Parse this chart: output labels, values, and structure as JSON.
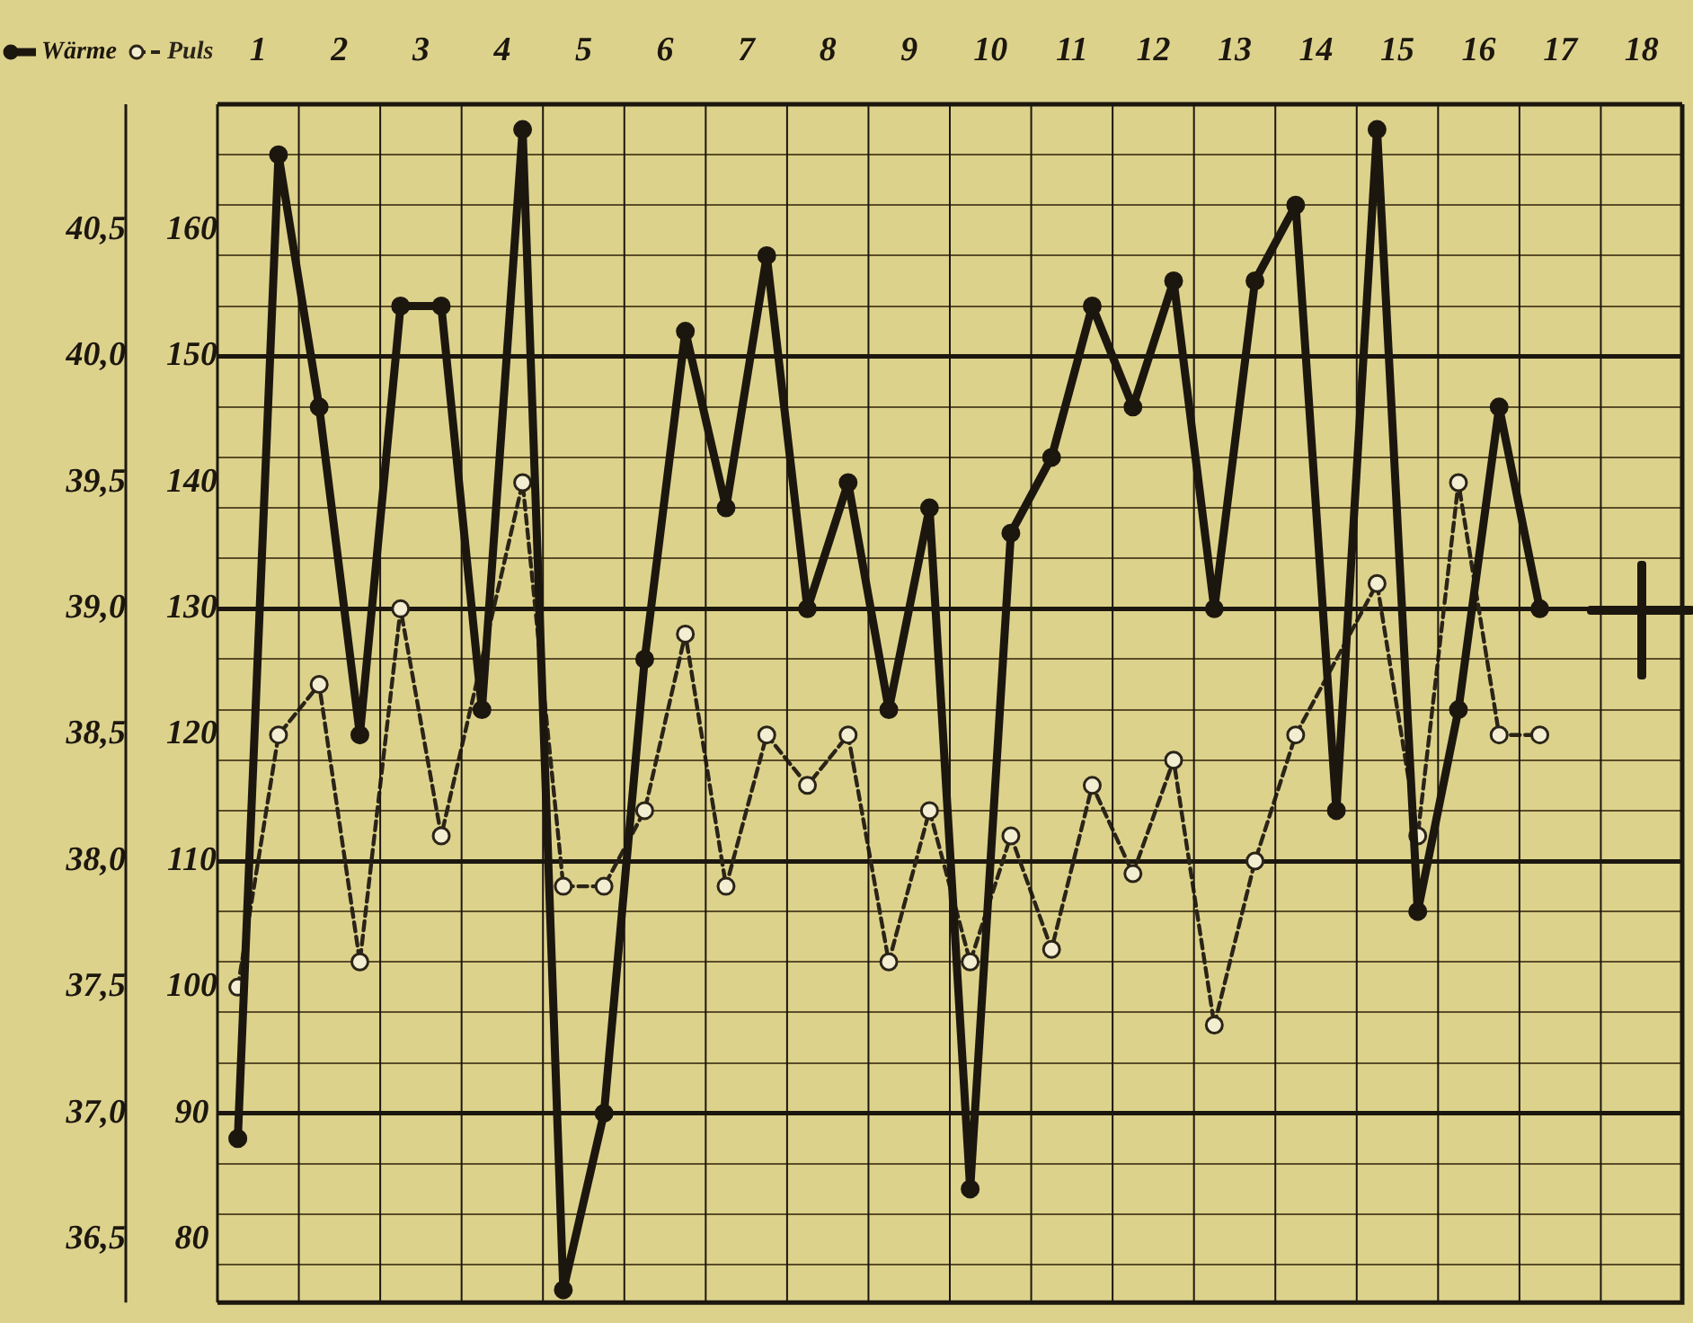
{
  "chart_data": {
    "type": "line",
    "legend": "top left",
    "grid": true,
    "x": [
      0.75,
      1.25,
      1.75,
      2.25,
      2.75,
      3.25,
      3.75,
      4.25,
      4.75,
      5.25,
      5.75,
      6.25,
      6.75,
      7.25,
      7.75,
      8.25,
      8.75,
      9.25,
      9.75,
      10.25,
      10.75,
      11.25,
      11.75,
      12.25,
      12.75,
      13.25,
      13.75,
      14.25,
      14.75,
      15.25,
      15.75,
      16.25,
      16.75
    ],
    "xlim": [
      0.5,
      18.5
    ],
    "xticks": [
      1,
      2,
      3,
      4,
      5,
      6,
      7,
      8,
      9,
      10,
      11,
      12,
      13,
      14,
      15,
      16,
      17,
      18
    ],
    "ylim": [
      36.25,
      41.0
    ],
    "yticks": [
      {
        "value": 36.4,
        "label": null
      },
      {
        "value": 36.5,
        "label": "36,5"
      },
      {
        "value": 36.6,
        "label": null
      },
      {
        "value": 36.8,
        "label": null
      },
      {
        "value": 37.0,
        "label": "37,0"
      },
      {
        "value": 37.2,
        "label": null
      },
      {
        "value": 37.4,
        "label": null
      },
      {
        "value": 37.5,
        "label": "37,5"
      },
      {
        "value": 37.6,
        "label": null
      },
      {
        "value": 37.8,
        "label": null
      },
      {
        "value": 38.0,
        "label": "38,0"
      },
      {
        "value": 38.2,
        "label": null
      },
      {
        "value": 38.4,
        "label": null
      },
      {
        "value": 38.5,
        "label": "38,5"
      },
      {
        "value": 38.6,
        "label": null
      },
      {
        "value": 38.8,
        "label": null
      },
      {
        "value": 39.0,
        "label": "39,0"
      },
      {
        "value": 39.2,
        "label": null
      },
      {
        "value": 39.4,
        "label": null
      },
      {
        "value": 39.5,
        "label": "39,5"
      },
      {
        "value": 39.6,
        "label": null
      },
      {
        "value": 39.8,
        "label": null
      },
      {
        "value": 40.0,
        "label": "40,0"
      },
      {
        "value": 40.2,
        "label": null
      },
      {
        "value": 40.4,
        "label": null
      },
      {
        "value": 40.5,
        "label": "40,5"
      },
      {
        "value": 40.6,
        "label": null
      },
      {
        "value": 40.8,
        "label": null
      }
    ],
    "y2lim": [
      75,
      170
    ],
    "y2ticks": [
      80,
      90,
      100,
      110,
      120,
      130,
      140,
      150,
      160
    ],
    "series": [
      {
        "name": "Wärme",
        "color": "#1c170e",
        "marker": "circle",
        "line_style": "solid",
        "values": [
          36.9,
          40.8,
          39.8,
          38.5,
          40.2,
          40.2,
          38.6,
          40.9,
          36.3,
          37.0,
          38.8,
          40.1,
          39.4,
          40.4,
          39.0,
          39.5,
          38.6,
          39.4,
          36.7,
          39.3,
          39.6,
          40.2,
          39.8,
          40.3,
          39.0,
          40.3,
          40.6,
          38.2,
          40.9,
          37.8,
          38.6,
          39.8,
          39.0
        ]
      },
      {
        "name": "Puls",
        "color": "#2a2418",
        "marker": "circle",
        "line_style": "dashed",
        "axis": "y2",
        "values": [
          100,
          120,
          124,
          102,
          130,
          112,
          null,
          140,
          108,
          108,
          114,
          128,
          108,
          120,
          116,
          120,
          102,
          114,
          102,
          112,
          103,
          116,
          109,
          118,
          97,
          110,
          120,
          null,
          132,
          112,
          140,
          120,
          120
        ]
      }
    ]
  }
}
